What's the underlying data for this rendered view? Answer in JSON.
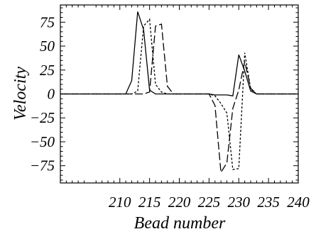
{
  "chart_data": {
    "type": "line",
    "title": "",
    "xlabel": "Bead number",
    "ylabel": "Velocity",
    "xlim": [
      200,
      240
    ],
    "ylim": [
      -93,
      93
    ],
    "x_ticks": [
      210,
      215,
      220,
      225,
      230,
      235,
      240
    ],
    "y_ticks": [
      75,
      50,
      25,
      0,
      -25,
      -50,
      -75
    ],
    "x_tick_labels": [
      "210",
      "215",
      "220",
      "225",
      "230",
      "235",
      "240"
    ],
    "y_tick_labels": [
      "75",
      "50",
      "25",
      "0",
      "−25",
      "−50",
      "−75"
    ],
    "grid": false,
    "legend": "none",
    "series": [
      {
        "style": "solid",
        "x": [
          200,
          211,
          212,
          213,
          214,
          215,
          216,
          217,
          218,
          219,
          220,
          221,
          222,
          223,
          224,
          225,
          226,
          227,
          228,
          229,
          230,
          231,
          232,
          233,
          234,
          235,
          236,
          237,
          238,
          239,
          240
        ],
        "y": [
          0,
          0,
          14,
          86,
          67,
          4,
          0,
          0,
          0,
          0,
          0,
          0,
          0,
          0,
          0,
          0,
          -1,
          -1,
          -1,
          -2,
          41,
          24,
          3,
          0,
          0,
          0,
          0,
          0,
          0,
          0,
          0
        ]
      },
      {
        "style": "dotted",
        "x": [
          200,
          212,
          213,
          214,
          215,
          216,
          217,
          218,
          219,
          220,
          221,
          222,
          223,
          224,
          225,
          226,
          227,
          228,
          229,
          230,
          231,
          232,
          233,
          234,
          235,
          236,
          237,
          238,
          239,
          240
        ],
        "y": [
          0,
          0,
          3,
          71,
          78,
          10,
          2,
          0,
          0,
          0,
          0,
          0,
          0,
          0,
          0,
          -2,
          -10,
          -20,
          -79,
          -78,
          43,
          5,
          0,
          0,
          0,
          0,
          0,
          0,
          0,
          0
        ]
      },
      {
        "style": "dashed",
        "x": [
          200,
          213,
          214,
          215,
          216,
          217,
          218,
          219,
          220,
          221,
          222,
          223,
          224,
          225,
          226,
          227,
          228,
          229,
          230,
          231,
          232,
          233,
          234,
          235,
          236,
          237,
          238,
          239,
          240
        ],
        "y": [
          0,
          0,
          0,
          2,
          71,
          73,
          8,
          0,
          0,
          0,
          0,
          0,
          0,
          0,
          -12,
          -82,
          -72,
          -15,
          4,
          34,
          6,
          0,
          0,
          0,
          0,
          0,
          0,
          0,
          0
        ]
      }
    ]
  }
}
